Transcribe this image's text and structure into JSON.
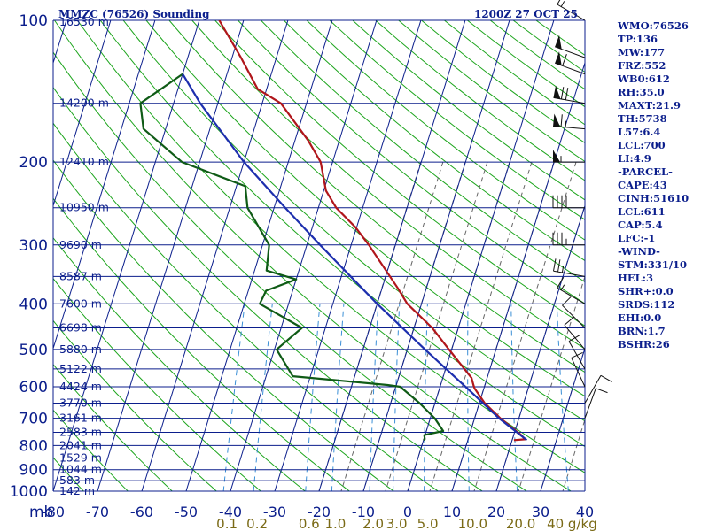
{
  "header": {
    "station": "MMZC (76526) Sounding",
    "datetime": "1200Z 27 OCT 25"
  },
  "chart_data": {
    "type": "skewt",
    "title": "MMZC (76526) Sounding",
    "pressure_unit_label": "mb",
    "temperature_range": [
      -80,
      40
    ],
    "pressure_range": [
      1000,
      100
    ],
    "pressure_ticks": [
      100,
      200,
      300,
      400,
      500,
      600,
      700,
      800,
      900,
      1000
    ],
    "pressure_labels": [
      "100",
      "200",
      "300",
      "400",
      "500",
      "600",
      "700",
      "800",
      "900",
      "1000"
    ],
    "temperature_ticks": [
      -80,
      -70,
      -60,
      -50,
      -40,
      -30,
      -20,
      -10,
      0,
      10,
      20,
      30,
      40
    ],
    "temperature_labels": [
      "-80",
      "-70",
      "-60",
      "-50",
      "-40",
      "-30",
      "-20",
      "-10",
      "0",
      "10",
      "20",
      "30",
      "40"
    ],
    "height_levels": [
      {
        "p": 100,
        "label": "16530 m"
      },
      {
        "p": 150,
        "label": "14200 m"
      },
      {
        "p": 200,
        "label": "12410 m"
      },
      {
        "p": 250,
        "label": "10950 m"
      },
      {
        "p": 300,
        "label": "9690 m"
      },
      {
        "p": 350,
        "label": "8587 m"
      },
      {
        "p": 400,
        "label": "7600 m"
      },
      {
        "p": 450,
        "label": "6698 m"
      },
      {
        "p": 500,
        "label": "5880 m"
      },
      {
        "p": 550,
        "label": "5122 m"
      },
      {
        "p": 600,
        "label": "4424 m"
      },
      {
        "p": 650,
        "label": "3770 m"
      },
      {
        "p": 700,
        "label": "3161 m"
      },
      {
        "p": 750,
        "label": "2583 m"
      },
      {
        "p": 800,
        "label": "2041 m"
      },
      {
        "p": 850,
        "label": "1529 m"
      },
      {
        "p": 900,
        "label": "1044 m"
      },
      {
        "p": 950,
        "label": "583 m"
      },
      {
        "p": 1000,
        "label": "142 m"
      }
    ],
    "mixing_ratio_labels": [
      "0.1",
      "0.2",
      "0.6",
      "1.0",
      "2.0",
      "3.0",
      "5.0",
      "10.0",
      "20.0",
      "40 g/kg"
    ],
    "series": [
      {
        "name": "Temperature",
        "color": "#b0161b",
        "points": [
          {
            "p": 779,
            "t": 20.4
          },
          {
            "p": 776,
            "t": 22.8
          },
          {
            "p": 760,
            "t": 21.7
          },
          {
            "p": 700,
            "t": 15.8
          },
          {
            "p": 650,
            "t": 11.2
          },
          {
            "p": 605,
            "t": 7.9
          },
          {
            "p": 595,
            "t": 7.4
          },
          {
            "p": 575,
            "t": 6.5
          },
          {
            "p": 500,
            "t": -0.6
          },
          {
            "p": 450,
            "t": -5.9
          },
          {
            "p": 400,
            "t": -13.2
          },
          {
            "p": 370,
            "t": -16.5
          },
          {
            "p": 300,
            "t": -26.0
          },
          {
            "p": 275,
            "t": -30.3
          },
          {
            "p": 250,
            "t": -36.0
          },
          {
            "p": 230,
            "t": -39.5
          },
          {
            "p": 200,
            "t": -42.7
          },
          {
            "p": 180,
            "t": -47.0
          },
          {
            "p": 150,
            "t": -55.8
          },
          {
            "p": 140,
            "t": -62.0
          },
          {
            "p": 120,
            "t": -68.0
          },
          {
            "p": 100,
            "t": -75.5
          }
        ]
      },
      {
        "name": "Dewpoint",
        "color": "#0f5b16",
        "points": [
          {
            "p": 779,
            "t": 0.0
          },
          {
            "p": 775,
            "t": 0.2
          },
          {
            "p": 760,
            "t": -0.2
          },
          {
            "p": 745,
            "t": 3.8
          },
          {
            "p": 700,
            "t": 1.0
          },
          {
            "p": 650,
            "t": -3.5
          },
          {
            "p": 600,
            "t": -9.0
          },
          {
            "p": 595,
            "t": -12.0
          },
          {
            "p": 570,
            "t": -34.0
          },
          {
            "p": 500,
            "t": -39.5
          },
          {
            "p": 450,
            "t": -35.3
          },
          {
            "p": 400,
            "t": -46.5
          },
          {
            "p": 375,
            "t": -46.0
          },
          {
            "p": 355,
            "t": -40.0
          },
          {
            "p": 340,
            "t": -47.3
          },
          {
            "p": 300,
            "t": -48.5
          },
          {
            "p": 250,
            "t": -56.0
          },
          {
            "p": 225,
            "t": -58.0
          },
          {
            "p": 200,
            "t": -74.0
          },
          {
            "p": 170,
            "t": -85.0
          },
          {
            "p": 150,
            "t": -87.5
          },
          {
            "p": 130,
            "t": -80.0
          }
        ]
      },
      {
        "name": "Parcel path",
        "color": "#1d2fae",
        "points": [
          {
            "p": 779,
            "t": 23.3
          },
          {
            "p": 700,
            "t": 15.5
          },
          {
            "p": 611,
            "t": 6.9
          },
          {
            "p": 500,
            "t": -6.0
          },
          {
            "p": 400,
            "t": -20.0
          },
          {
            "p": 300,
            "t": -37.0
          },
          {
            "p": 250,
            "t": -47.5
          },
          {
            "p": 200,
            "t": -60.0
          },
          {
            "p": 150,
            "t": -74.0
          },
          {
            "p": 130,
            "t": -80.0
          }
        ]
      }
    ],
    "wind_barbs": [
      {
        "p": 100,
        "dir": 300,
        "spd": 15
      },
      {
        "p": 120,
        "dir": 290,
        "spd": 50
      },
      {
        "p": 130,
        "dir": 290,
        "spd": 60
      },
      {
        "p": 150,
        "dir": 280,
        "spd": 70
      },
      {
        "p": 170,
        "dir": 275,
        "spd": 65
      },
      {
        "p": 200,
        "dir": 270,
        "spd": 55
      },
      {
        "p": 250,
        "dir": 270,
        "spd": 40
      },
      {
        "p": 300,
        "dir": 270,
        "spd": 35
      },
      {
        "p": 350,
        "dir": 280,
        "spd": 25
      },
      {
        "p": 400,
        "dir": 300,
        "spd": 15
      },
      {
        "p": 450,
        "dir": 315,
        "spd": 10
      },
      {
        "p": 500,
        "dir": 320,
        "spd": 10
      },
      {
        "p": 550,
        "dir": 330,
        "spd": 10
      },
      {
        "p": 600,
        "dir": 335,
        "spd": 10
      },
      {
        "p": 650,
        "dir": 30,
        "spd": 10
      },
      {
        "p": 700,
        "dir": 20,
        "spd": 10
      }
    ]
  },
  "indices": [
    {
      "label": "WMO",
      "value": "76526"
    },
    {
      "label": "TP",
      "value": "136"
    },
    {
      "label": "MW",
      "value": "177"
    },
    {
      "label": "FRZ",
      "value": "552"
    },
    {
      "label": "WB0",
      "value": "612"
    },
    {
      "label": "RH",
      "value": "35.0"
    },
    {
      "label": "MAXT",
      "value": "21.9"
    },
    {
      "label": "TH",
      "value": "5738"
    },
    {
      "label": "L57",
      "value": "6.4"
    },
    {
      "label": "LCL",
      "value": "700"
    },
    {
      "label": "LI",
      "value": "4.9"
    },
    {
      "label": "-PARCEL-",
      "value": ""
    },
    {
      "label": "CAPE",
      "value": "43"
    },
    {
      "label": "CINH",
      "value": "51610"
    },
    {
      "label": "LCL",
      "value": "611"
    },
    {
      "label": "CAP",
      "value": "5.4"
    },
    {
      "label": "LFC",
      "value": "-1"
    },
    {
      "label": "-WIND-",
      "value": ""
    },
    {
      "label": "STM",
      "value": "331/10"
    },
    {
      "label": "HEL",
      "value": "3"
    },
    {
      "label": "SHR+",
      "value": "0.0"
    },
    {
      "label": "SRDS",
      "value": "112"
    },
    {
      "label": "EHI",
      "value": "0.0"
    },
    {
      "label": "BRN",
      "value": "1.7"
    },
    {
      "label": "BSHR",
      "value": "26"
    }
  ],
  "colors": {
    "grid": "#0b1e8c",
    "label": "#0b1e8c",
    "dry_adiabat": "#1da51d",
    "moist_adiabat": "#666666",
    "mixing_ratio": "#3a8fd6",
    "mixing_label": "#7a6a16",
    "temperature": "#b0161b",
    "dewpoint": "#0f5b16",
    "parcel": "#1d2fae",
    "barb": "#111111"
  }
}
